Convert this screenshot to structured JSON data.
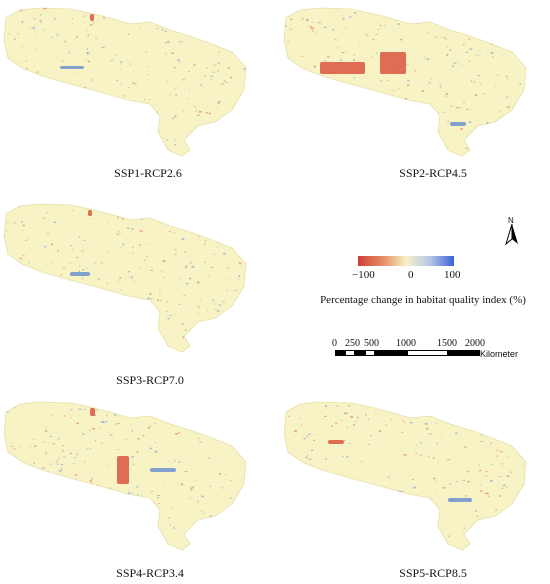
{
  "panels": [
    {
      "label": "SSP1-RCP2.6"
    },
    {
      "label": "SSP2-RCP4.5"
    },
    {
      "label": "SSP3-RCP7.0"
    },
    {
      "label": "SSP4-RCP3.4"
    },
    {
      "label": "SSP5-RCP8.5"
    }
  ],
  "legend": {
    "title": "Percentage change in habitat quality index (%)",
    "min_label": "−100",
    "mid_label": "0",
    "max_label": "100",
    "colors": {
      "negative": "#cf3f35",
      "neutral": "#f7f1c8",
      "positive": "#3b63d6"
    }
  },
  "north_arrow": {
    "label": "N"
  },
  "scale_bar": {
    "ticks": [
      "0",
      "250",
      "500",
      "1000",
      "1500",
      "2000"
    ],
    "unit": "Kilometer"
  },
  "map_fill_color": "#f7f3c4"
}
